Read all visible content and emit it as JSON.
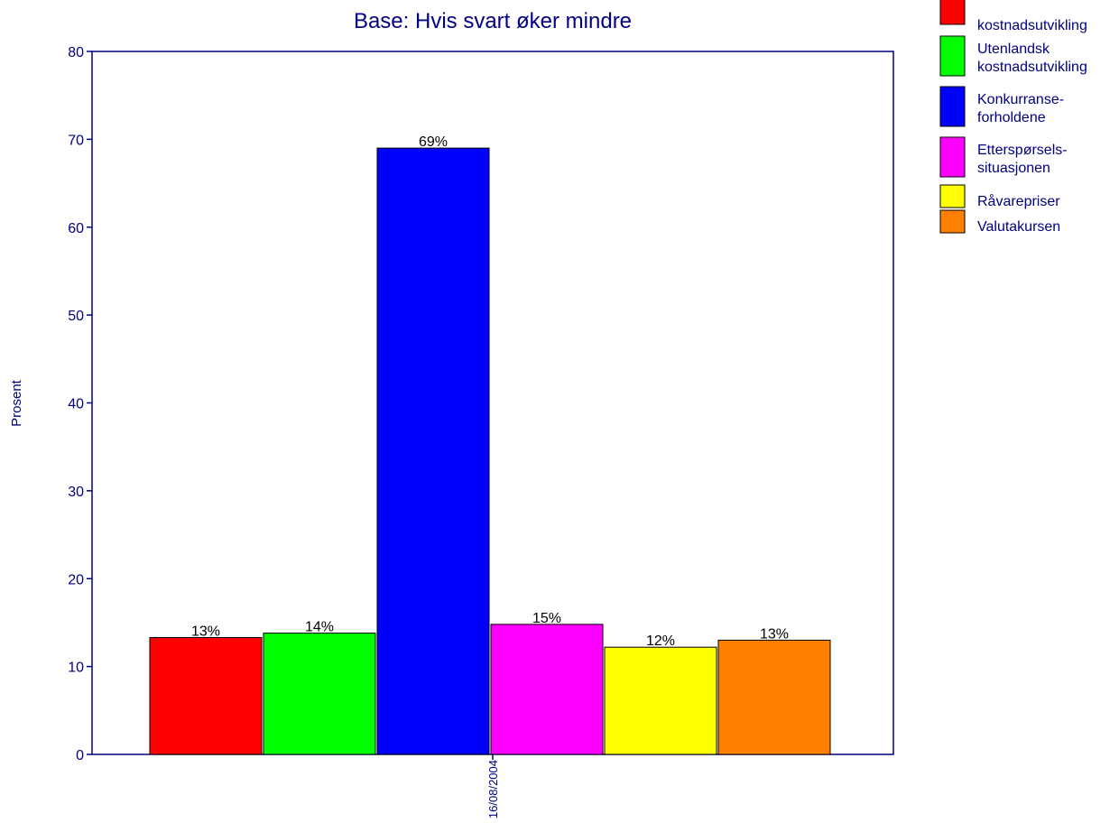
{
  "chart_data": {
    "type": "bar",
    "title": "Base: Hvis svart øker mindre",
    "ylabel": "Prosent",
    "xlabel": "",
    "categories": [
      "16/08/2004"
    ],
    "ylim": [
      0,
      80
    ],
    "yticks": [
      0,
      10,
      20,
      30,
      40,
      50,
      60,
      70,
      80
    ],
    "grid": false,
    "legend_position": "top-right",
    "series": [
      {
        "name": [
          "",
          "kostnadsutvikling"
        ],
        "color": "#FF0000",
        "values": [
          13.3
        ],
        "label": "13%"
      },
      {
        "name": [
          "Utenlandsk",
          "kostnadsutvikling"
        ],
        "color": "#00FF00",
        "values": [
          13.8
        ],
        "label": "14%"
      },
      {
        "name": [
          "Konkurranse-",
          "forholdene"
        ],
        "color": "#0000FF",
        "values": [
          69
        ],
        "label": "69%"
      },
      {
        "name": [
          "Etterspørsels-",
          "situasjonen"
        ],
        "color": "#FF00FF",
        "values": [
          14.8
        ],
        "label": "15%"
      },
      {
        "name": [
          "Råvarepriser"
        ],
        "color": "#FFFF00",
        "values": [
          12.2
        ],
        "label": "12%"
      },
      {
        "name": [
          "Valutakursen"
        ],
        "color": "#FF8000",
        "values": [
          13
        ],
        "label": "13%"
      }
    ]
  },
  "colors": {
    "axis": "#000080",
    "bar_border": "#000000"
  }
}
